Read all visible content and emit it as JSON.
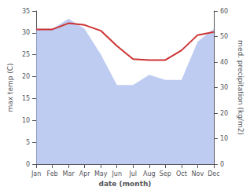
{
  "chart_data": {
    "type": "line",
    "categories": [
      "Jan",
      "Feb",
      "Mar",
      "Apr",
      "May",
      "Jun",
      "Jul",
      "Aug",
      "Sep",
      "Oct",
      "Nov",
      "Dec"
    ],
    "xlabel": "date (month)",
    "ylabel": "max temp (C)",
    "y2label": "med. precipitation (kg/m2)",
    "series": [
      {
        "type": "area",
        "axis": "y2",
        "color": "#aabbee",
        "values": [
          53,
          53,
          57,
          53,
          43,
          31,
          31,
          35,
          33,
          33,
          48,
          53
        ]
      },
      {
        "type": "line",
        "color": "#cc3333",
        "values": [
          30.8,
          30.8,
          32.2,
          31.8,
          30.5,
          27.0,
          24.0,
          23.8,
          23.8,
          26.0,
          29.5,
          30.2
        ]
      }
    ],
    "ylim": [
      0,
      35
    ],
    "yticks": [
      0,
      5,
      10,
      15,
      20,
      25,
      30,
      35
    ],
    "y2lim": [
      0,
      60
    ],
    "y2ticks": [
      0,
      10,
      20,
      30,
      40,
      50,
      60
    ],
    "grid": false
  }
}
